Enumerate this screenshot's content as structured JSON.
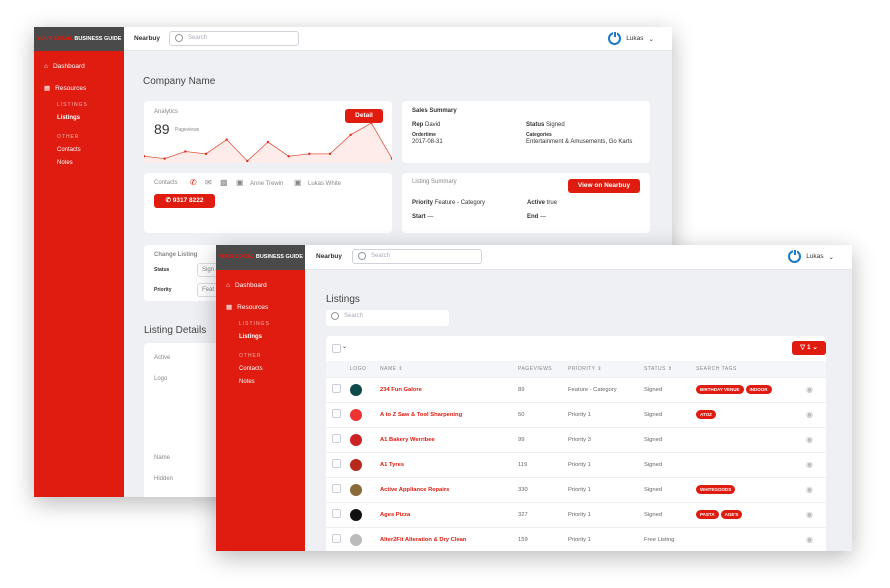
{
  "brand": {
    "red": "YOUR LOCAL",
    "white": "BUSINESS GUIDE"
  },
  "colors": {
    "accent": "#e01b0f",
    "sidebar_top": "#4a4a4a",
    "user_icon": "#1a7ac8"
  },
  "header": {
    "nearbuy": "Nearbuy",
    "search_placeholder": "Search",
    "user": "Lukas"
  },
  "sidebar": {
    "dashboard": "Dashboard",
    "resources": "Resources",
    "listings_section": "LISTINGS",
    "listings": "Listings",
    "other_section": "OTHER",
    "contacts": "Contacts",
    "notes": "Notes"
  },
  "company": {
    "title": "Company Name",
    "analytics": {
      "label": "Analytics",
      "count": "89",
      "unit": "Pageviews",
      "detail": "Detail"
    },
    "contacts": {
      "label": "Contacts",
      "person1": "Anne Trewin",
      "person2": "Lukas White",
      "phone": "9317 8222"
    },
    "sales": {
      "title": "Sales Summary",
      "rep_label": "Rep",
      "rep": "David",
      "status_label": "Status",
      "status": "Signed",
      "ordertime_label": "Ordertime",
      "ordertime": "2017-08-31",
      "categories_label": "Categories",
      "categories": "Entertainment & Amusements, Go Karts"
    },
    "listing_summary": {
      "title": "Listing Summary",
      "view": "View on Nearbuy",
      "priority_label": "Priority",
      "priority": "Feature - Category",
      "active_label": "Active",
      "active": "true",
      "start_label": "Start",
      "start": "—",
      "end_label": "End",
      "end": "—"
    },
    "change": {
      "title": "Change Listing",
      "status_label": "Status",
      "status": "Sign",
      "priority_label": "Priority",
      "priority": "Feat"
    },
    "details": {
      "title": "Listing Details",
      "fields": [
        "Active",
        "Logo",
        "Name",
        "Hidden"
      ]
    }
  },
  "chart_data": {
    "type": "line",
    "values": [
      2,
      1,
      4,
      3,
      9,
      0,
      8,
      2,
      3,
      3,
      11,
      16,
      1
    ]
  },
  "listings": {
    "title": "Listings",
    "search_placeholder": "Search",
    "filter_count": "1",
    "columns": [
      "LOGO",
      "NAME",
      "PAGEVIEWS",
      "PRIORITY",
      "STATUS",
      "SEARCH TAGS"
    ],
    "rows": [
      {
        "name": "234 Fun Galore",
        "pageviews": "89",
        "priority": "Feature - Category",
        "status": "Signed",
        "tags": [
          "BIRTHDAY VENUE",
          "INDOOR"
        ],
        "logo_color": "#0d4a4a"
      },
      {
        "name": "A to Z Saw & Tool Sharpening",
        "pageviews": "50",
        "priority": "Priority 1",
        "status": "Signed",
        "tags": [
          "ATOZ"
        ],
        "logo_color": "#e33"
      },
      {
        "name": "A1 Bakery Werribee",
        "pageviews": "99",
        "priority": "Priority 3",
        "status": "Signed",
        "tags": [],
        "logo_color": "#c22"
      },
      {
        "name": "A1 Tyres",
        "pageviews": "119",
        "priority": "Priority 1",
        "status": "Signed",
        "tags": [],
        "logo_color": "#b52a1a"
      },
      {
        "name": "Active Appliance Repairs",
        "pageviews": "330",
        "priority": "Priority 1",
        "status": "Signed",
        "tags": [
          "WHITEGOODS"
        ],
        "logo_color": "#8a6a3a"
      },
      {
        "name": "Ages Pizza",
        "pageviews": "327",
        "priority": "Priority 1",
        "status": "Signed",
        "tags": [
          "PASTA",
          "AGE'S"
        ],
        "logo_color": "#111"
      },
      {
        "name": "Alter2Fit Alteration & Dry Clean",
        "pageviews": "159",
        "priority": "Priority 1",
        "status": "Free Listing",
        "tags": [],
        "logo_color": "#bbb"
      }
    ]
  }
}
